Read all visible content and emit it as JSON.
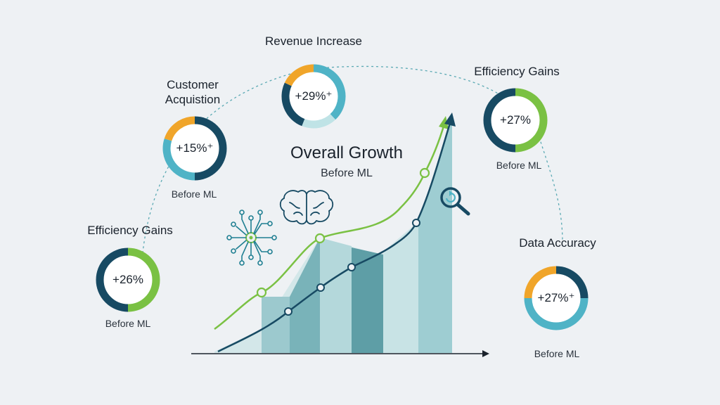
{
  "colors": {
    "navy": "#174a63",
    "teal": "#4fb3c6",
    "light_teal": "#bfe3e6",
    "orange": "#f0a52a",
    "green": "#7ac143",
    "background": "#eef1f4"
  },
  "center": {
    "title": "Overall Growth",
    "subtitle": "Before ML"
  },
  "icons": [
    "brain-icon",
    "neural-network-icon",
    "magnifier-refresh-icon"
  ],
  "metrics": [
    {
      "id": "revenue",
      "title": "Revenue Increase",
      "value": "+29%⁺",
      "segments": [
        {
          "share": 0.38,
          "color": "#4fb3c6"
        },
        {
          "share": 0.18,
          "color": "#bfe3e6"
        },
        {
          "share": 0.26,
          "color": "#174a63"
        },
        {
          "share": 0.18,
          "color": "#f0a52a"
        }
      ]
    },
    {
      "id": "customer",
      "title_lines": [
        "Customer",
        "Acquistion"
      ],
      "value": "+15%⁺",
      "subtitle": "Before ML",
      "segments": [
        {
          "share": 0.5,
          "color": "#174a63"
        },
        {
          "share": 0.3,
          "color": "#4fb3c6"
        },
        {
          "share": 0.2,
          "color": "#f0a52a"
        }
      ]
    },
    {
      "id": "efficiency_right",
      "title": "Efficiency Gains",
      "value": "+27%",
      "subtitle": "Before ML",
      "segments": [
        {
          "share": 0.5,
          "color": "#7ac143"
        },
        {
          "share": 0.5,
          "color": "#174a63"
        }
      ]
    },
    {
      "id": "efficiency_left",
      "title": "Efficiency Gains",
      "value": "+26%",
      "subtitle": "Before ML",
      "segments": [
        {
          "share": 0.5,
          "color": "#7ac143"
        },
        {
          "share": 0.5,
          "color": "#174a63"
        }
      ]
    },
    {
      "id": "data_accuracy",
      "title": "Data Accuracy",
      "value": "+27%⁺",
      "subtitle": "Before ML",
      "segments": [
        {
          "share": 0.25,
          "color": "#174a63"
        },
        {
          "share": 0.5,
          "color": "#4fb3c6"
        },
        {
          "share": 0.25,
          "color": "#f0a52a"
        }
      ]
    }
  ]
}
